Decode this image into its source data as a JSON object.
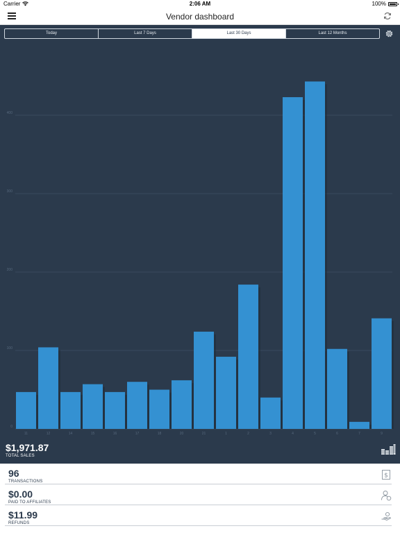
{
  "status_bar": {
    "carrier": "Carrier",
    "time": "2:06 AM",
    "battery": "100%"
  },
  "nav": {
    "title": "Vendor dashboard"
  },
  "periods": [
    {
      "label": "Today",
      "active": false
    },
    {
      "label": "Last 7 Days",
      "active": false
    },
    {
      "label": "Last 30 Days",
      "active": true
    },
    {
      "label": "Last 12 Months",
      "active": false
    }
  ],
  "chart_data": {
    "type": "bar",
    "title": "",
    "xlabel": "",
    "ylabel": "",
    "categories": [
      "11",
      "12",
      "14",
      "15",
      "16",
      "17",
      "18",
      "20",
      "21",
      "1",
      "2",
      "3",
      "4",
      "5",
      "6",
      "7",
      "9"
    ],
    "values": [
      47,
      104,
      47,
      57,
      47,
      60,
      50,
      62,
      124,
      92,
      184,
      40,
      423,
      443,
      102,
      9,
      141
    ],
    "ylim": [
      0,
      500
    ],
    "yticks": [
      0,
      100,
      200,
      300,
      400
    ],
    "grid": true,
    "bar_color": "#3491d2"
  },
  "total": {
    "amount": "$1,971.87",
    "label": "TOTAL SALES"
  },
  "stats": [
    {
      "value": "96",
      "label": "TRANSACTIONS",
      "icon": "dollar-bill-icon"
    },
    {
      "value": "$0.00",
      "label": "PAID TO AFFILIATES",
      "icon": "affiliate-user-icon"
    },
    {
      "value": "$11.99",
      "label": "REFUNDS",
      "icon": "refund-hand-icon"
    }
  ]
}
